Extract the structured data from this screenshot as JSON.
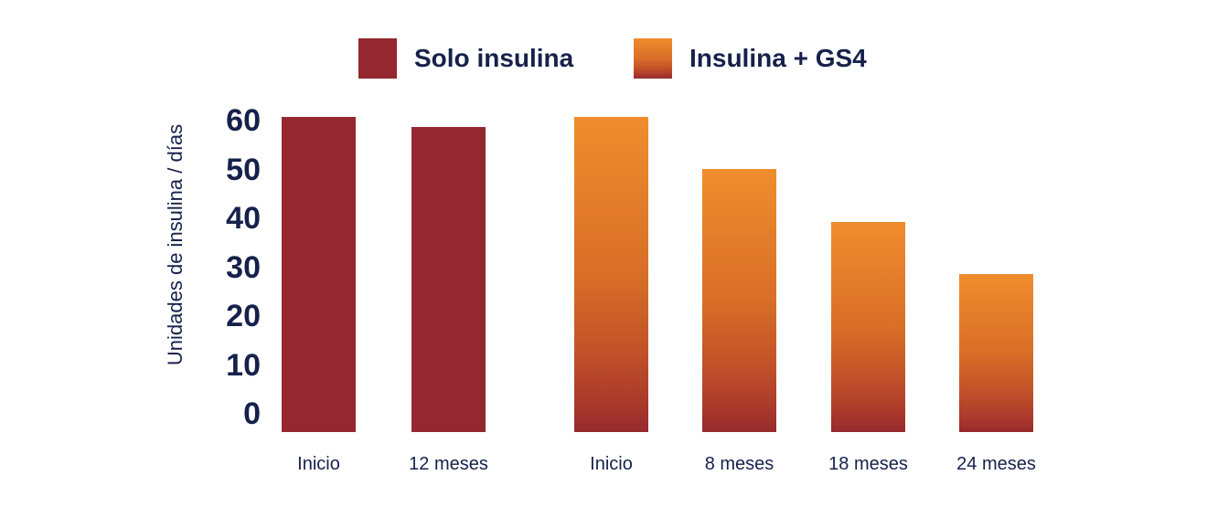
{
  "colors": {
    "background": "#FFFFFF",
    "navy": "#16214B",
    "solo_red": "#94272F",
    "gs4_top": "#EF8D2D",
    "gs4_mid": "#D96E27",
    "gs4_low": "#C05129",
    "gs4_deep": "#AC3A2B",
    "gs4_bottom": "#962A2E"
  },
  "legend": {
    "items": [
      {
        "label": "Solo insulina",
        "series": "solo"
      },
      {
        "label": "Insulina + GS4",
        "series": "gs4"
      }
    ]
  },
  "chart_data": {
    "type": "bar",
    "title": "",
    "xlabel": "",
    "ylabel": "Unidades de insulina / días",
    "ylim": [
      0,
      60
    ],
    "yticks": [
      0,
      10,
      20,
      30,
      40,
      50,
      60
    ],
    "grid": false,
    "axis_lines": false,
    "legend_position": "top",
    "categories": [
      "Inicio",
      "12 meses",
      "Inicio",
      "8 meses",
      "18 meses",
      "24 meses"
    ],
    "series": [
      {
        "name": "Solo insulina",
        "color": "#94272F",
        "values": [
          60,
          58,
          null,
          null,
          null,
          null
        ]
      },
      {
        "name": "Insulina + GS4",
        "color": "#ED8A2B",
        "values": [
          null,
          null,
          60,
          50,
          40,
          30
        ]
      }
    ],
    "bars": [
      {
        "category": "Inicio",
        "value": 60,
        "series": "solo"
      },
      {
        "category": "12 meses",
        "value": 58,
        "series": "solo"
      },
      {
        "category": "Inicio",
        "value": 60,
        "series": "gs4"
      },
      {
        "category": "8 meses",
        "value": 50,
        "series": "gs4"
      },
      {
        "category": "18 meses",
        "value": 40,
        "series": "gs4"
      },
      {
        "category": "24 meses",
        "value": 30,
        "series": "gs4"
      }
    ]
  }
}
